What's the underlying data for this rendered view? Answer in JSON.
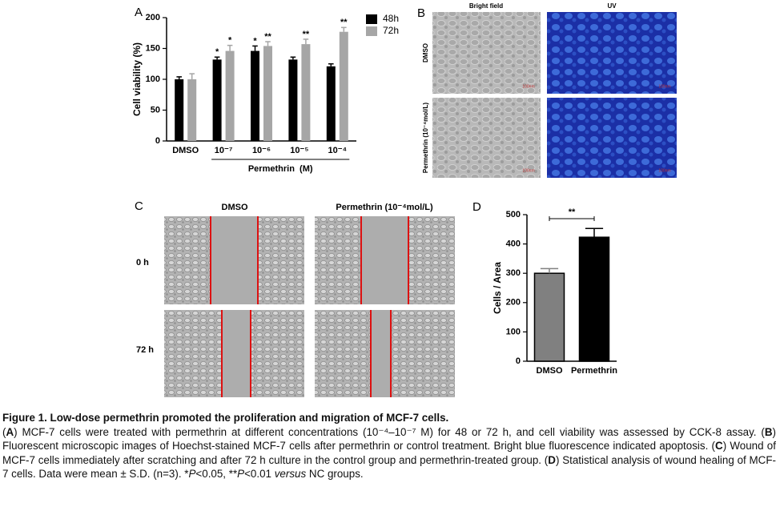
{
  "chart_data": [
    {
      "type": "bar",
      "panel_label": "A",
      "ylabel": "Cell viability (%)",
      "group_label": "Permethrin  (M)",
      "categories": [
        "DMSO",
        "10⁻⁷",
        "10⁻⁶",
        "10⁻⁵",
        "10⁻⁴"
      ],
      "series": [
        {
          "name": "48h",
          "color": "#000000",
          "values": [
            100,
            132,
            146,
            132,
            121
          ],
          "errors": [
            4,
            4,
            8,
            4,
            4
          ],
          "annotations": [
            null,
            "*",
            "*",
            null,
            null
          ]
        },
        {
          "name": "72h",
          "color": "#a6a6a6",
          "values": [
            100,
            146,
            154,
            157,
            177
          ],
          "errors": [
            9,
            9,
            7,
            8,
            7
          ],
          "annotations": [
            null,
            "*",
            "**",
            "**",
            "**"
          ]
        }
      ],
      "ylim": [
        0,
        200
      ],
      "yticks": [
        0,
        50,
        100,
        150,
        200
      ],
      "legend": "right"
    },
    {
      "type": "bar",
      "panel_label": "D",
      "ylabel": "Cells / Area",
      "significance": "**",
      "categories": [
        "DMSO",
        "Permethrin"
      ],
      "series": [
        {
          "colors": [
            "#808080",
            "#000000"
          ],
          "edgecolor": "#000000",
          "values": [
            300,
            423
          ],
          "errors": [
            16,
            30
          ]
        }
      ],
      "ylim": [
        0,
        500
      ],
      "yticks": [
        0,
        100,
        200,
        300,
        400,
        500
      ]
    }
  ],
  "panels": {
    "B": {
      "label": "B",
      "columns": [
        "Bright field",
        "UV"
      ],
      "rows": [
        "DMSO",
        "Permethrin (10⁻⁴mol/L)"
      ],
      "scale_bar": "100nm"
    },
    "C": {
      "label": "C",
      "columns": [
        "DMSO",
        "Permethrin (10⁻⁴mol/L)"
      ],
      "rows": [
        "0 h",
        "72 h"
      ]
    }
  },
  "caption": {
    "title": "Figure 1. Low-dose permethrin promoted the proliferation and migration of MCF-7 cells.",
    "body": [
      {
        "text": "("
      },
      {
        "text": "A",
        "bold": true
      },
      {
        "text": ") MCF-7 cells were treated with permethrin at different concentrations (10⁻⁴–10⁻⁷ M) for 48 or 72 h, and cell viability was assessed by CCK-8 assay. ("
      },
      {
        "text": "B",
        "bold": true
      },
      {
        "text": ") Fluorescent microscopic images of Hoechst-stained MCF-7 cells after permethrin or control treatment. Bright blue fluorescence indicated apoptosis. ("
      },
      {
        "text": "C",
        "bold": true
      },
      {
        "text": ") Wound of MCF-7 cells immediately after scratching and after 72 h culture in the control group and permethrin-treated group. ("
      },
      {
        "text": "D",
        "bold": true
      },
      {
        "text": ") Statistical analysis of wound healing of MCF-7 cells. Data were mean ± S.D. (n=3). *"
      },
      {
        "text": "P",
        "italic": true
      },
      {
        "text": "<0.05, **"
      },
      {
        "text": "P",
        "italic": true
      },
      {
        "text": "<0.01 "
      },
      {
        "text": "versus",
        "italic": true
      },
      {
        "text": " NC groups."
      }
    ]
  }
}
